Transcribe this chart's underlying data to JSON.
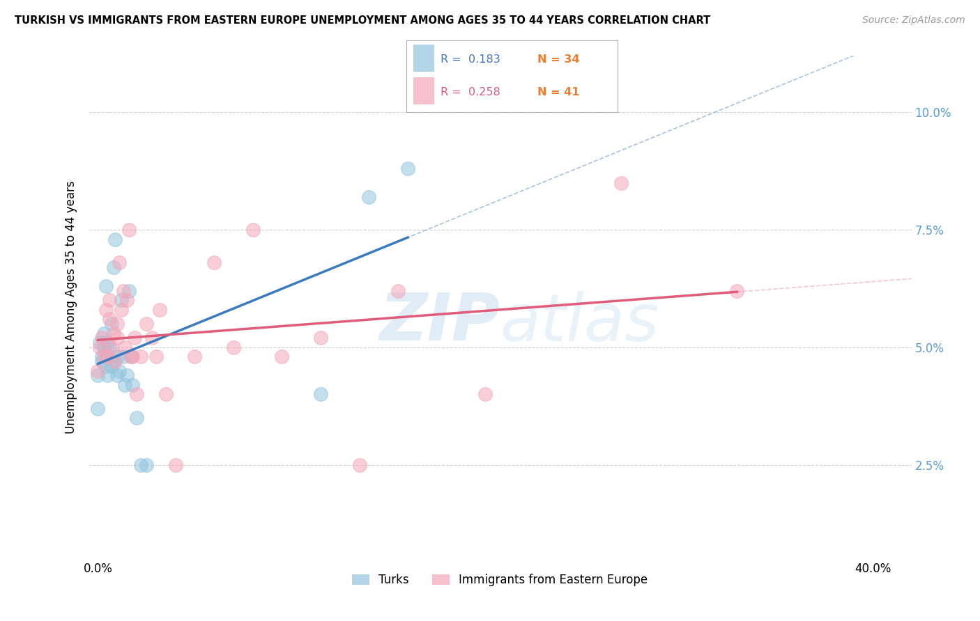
{
  "title": "TURKISH VS IMMIGRANTS FROM EASTERN EUROPE UNEMPLOYMENT AMONG AGES 35 TO 44 YEARS CORRELATION CHART",
  "source": "Source: ZipAtlas.com",
  "ylabel": "Unemployment Among Ages 35 to 44 years",
  "y_ticks": [
    0.025,
    0.05,
    0.075,
    0.1
  ],
  "y_tick_labels": [
    "2.5%",
    "5.0%",
    "7.5%",
    "10.0%"
  ],
  "xlim": [
    -0.005,
    0.42
  ],
  "ylim": [
    0.005,
    0.112
  ],
  "color_blue": "#92c5de",
  "color_pink": "#f4a6b8",
  "color_blue_line": "#3a7abf",
  "color_pink_line": "#e05c7a",
  "color_r1": "#4472c4",
  "color_n1": "#ed7d31",
  "color_r2": "#e05c7a",
  "color_n2": "#ed7d31",
  "color_right_axis": "#5b9bd5",
  "turks_x": [
    0.0,
    0.0,
    0.001,
    0.002,
    0.002,
    0.003,
    0.003,
    0.004,
    0.004,
    0.005,
    0.005,
    0.005,
    0.006,
    0.007,
    0.007,
    0.008,
    0.008,
    0.009,
    0.01,
    0.01,
    0.011,
    0.012,
    0.013,
    0.014,
    0.015,
    0.016,
    0.017,
    0.018,
    0.02,
    0.022,
    0.025,
    0.115,
    0.14,
    0.16
  ],
  "turks_y": [
    0.044,
    0.037,
    0.051,
    0.047,
    0.048,
    0.053,
    0.05,
    0.046,
    0.063,
    0.048,
    0.051,
    0.044,
    0.05,
    0.055,
    0.046,
    0.047,
    0.067,
    0.073,
    0.044,
    0.048,
    0.045,
    0.06,
    0.048,
    0.042,
    0.044,
    0.062,
    0.048,
    0.042,
    0.035,
    0.025,
    0.025,
    0.04,
    0.082,
    0.088
  ],
  "eastern_x": [
    0.0,
    0.001,
    0.002,
    0.003,
    0.004,
    0.005,
    0.006,
    0.006,
    0.007,
    0.008,
    0.009,
    0.01,
    0.01,
    0.011,
    0.012,
    0.013,
    0.014,
    0.015,
    0.016,
    0.017,
    0.018,
    0.019,
    0.02,
    0.022,
    0.025,
    0.028,
    0.03,
    0.032,
    0.035,
    0.04,
    0.05,
    0.06,
    0.07,
    0.08,
    0.095,
    0.115,
    0.135,
    0.155,
    0.2,
    0.27,
    0.33
  ],
  "eastern_y": [
    0.045,
    0.05,
    0.052,
    0.048,
    0.058,
    0.048,
    0.06,
    0.056,
    0.05,
    0.053,
    0.047,
    0.052,
    0.055,
    0.068,
    0.058,
    0.062,
    0.05,
    0.06,
    0.075,
    0.048,
    0.048,
    0.052,
    0.04,
    0.048,
    0.055,
    0.052,
    0.048,
    0.058,
    0.04,
    0.025,
    0.048,
    0.068,
    0.05,
    0.075,
    0.048,
    0.052,
    0.025,
    0.062,
    0.04,
    0.085,
    0.062
  ],
  "legend_r1_val": "0.183",
  "legend_n1_val": "34",
  "legend_r2_val": "0.258",
  "legend_n2_val": "41"
}
